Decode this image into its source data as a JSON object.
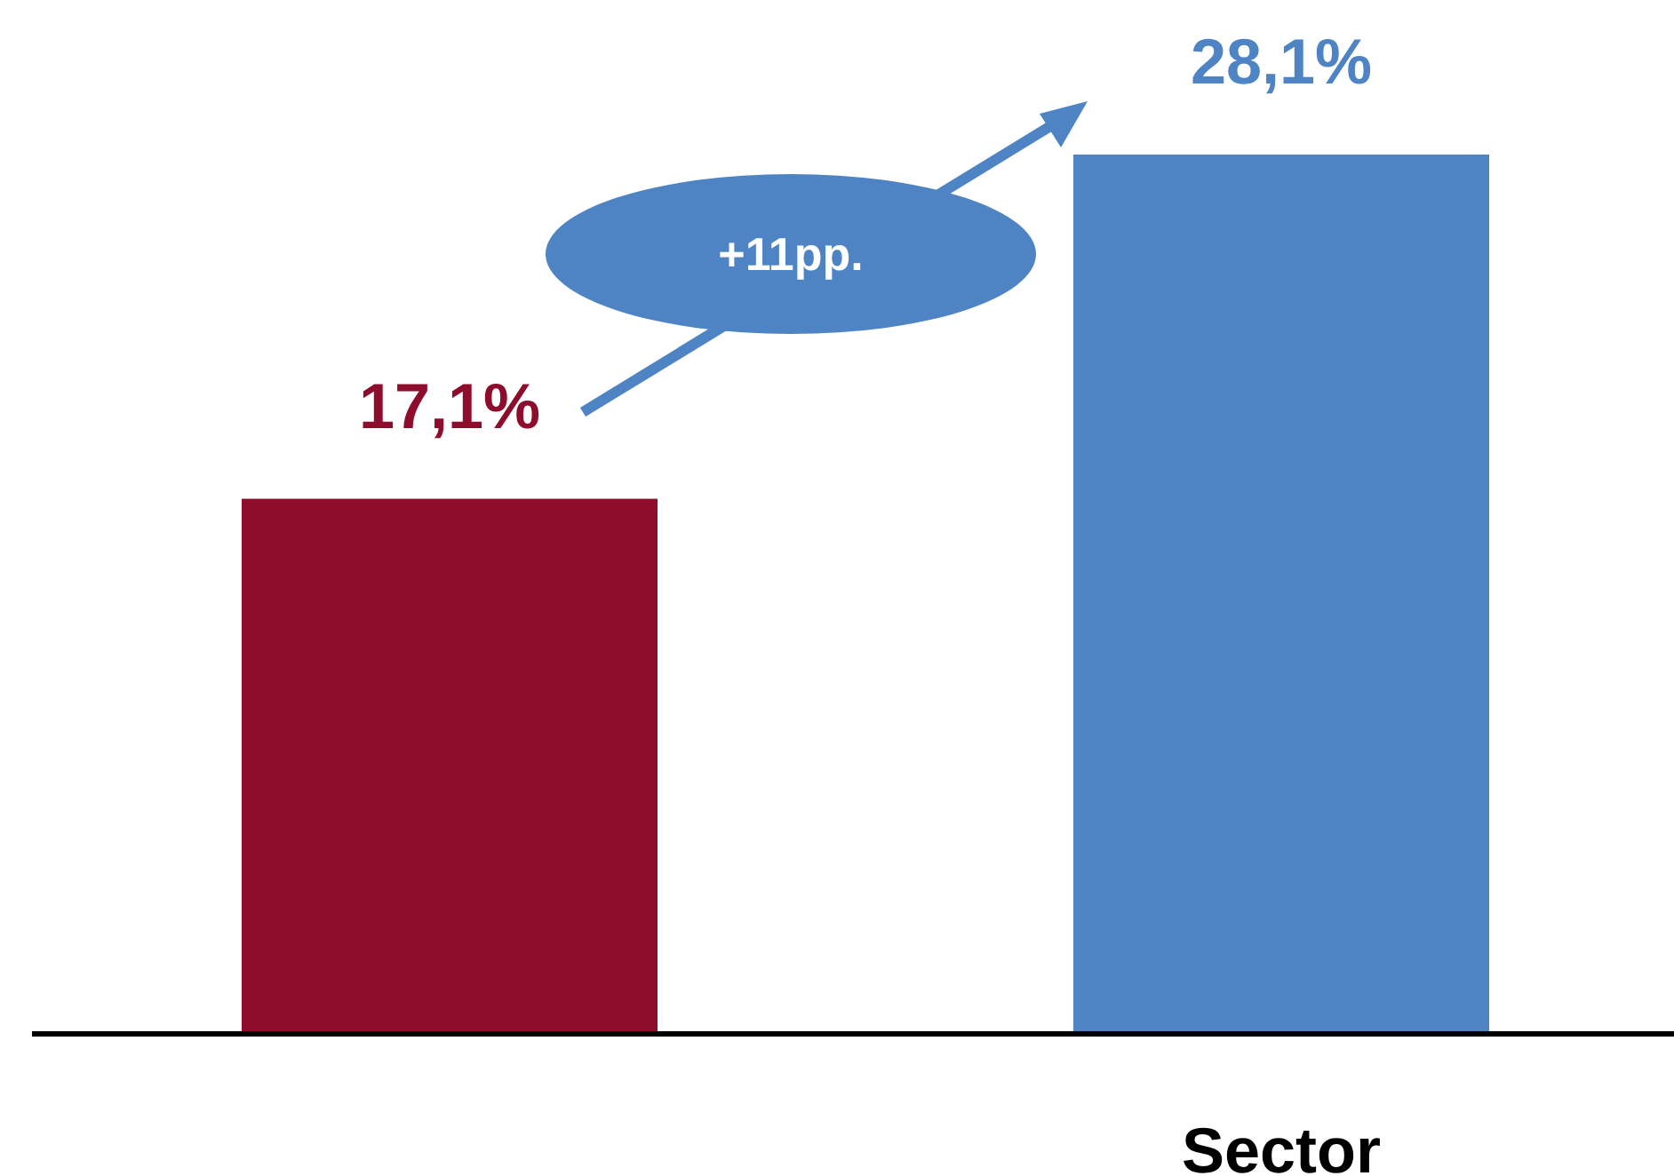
{
  "chart_data": {
    "type": "bar",
    "categories": [
      null,
      "Sector"
    ],
    "values": [
      17.1,
      28.1
    ],
    "colors": [
      "#8e0c2c",
      "#4f84c4"
    ],
    "value_labels": [
      "17,1%",
      "28,1%"
    ],
    "tick_labels": "x",
    "annotations": [
      "+11pp."
    ]
  }
}
